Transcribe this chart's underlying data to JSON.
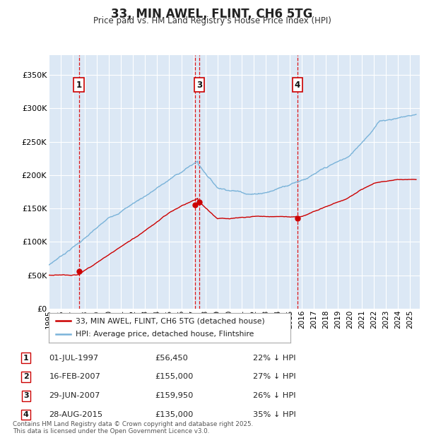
{
  "title": "33, MIN AWEL, FLINT, CH6 5TG",
  "subtitle": "Price paid vs. HM Land Registry's House Price Index (HPI)",
  "ylim": [
    0,
    380000
  ],
  "yticks": [
    0,
    50000,
    100000,
    150000,
    200000,
    250000,
    300000,
    350000
  ],
  "ytick_labels": [
    "£0",
    "£50K",
    "£100K",
    "£150K",
    "£200K",
    "£250K",
    "£300K",
    "£350K"
  ],
  "bg_color": "#dce8f5",
  "grid_color": "#ffffff",
  "hpi_color": "#7ab3d9",
  "price_color": "#cc0000",
  "vline_color": "#dd0000",
  "xlim_start": 1995.0,
  "xlim_end": 2025.8,
  "transactions": [
    {
      "num": 1,
      "date_x": 1997.5,
      "price": 56450
    },
    {
      "num": 2,
      "date_x": 2007.12,
      "price": 155000
    },
    {
      "num": 3,
      "date_x": 2007.49,
      "price": 159950
    },
    {
      "num": 4,
      "date_x": 2015.65,
      "price": 135000
    }
  ],
  "box_labels": [
    {
      "num": "1",
      "x": 1997.5
    },
    {
      "num": "3",
      "x": 2007.49
    },
    {
      "num": "4",
      "x": 2015.65
    }
  ],
  "transaction_table": [
    {
      "num": "1",
      "date": "01-JUL-1997",
      "price": "£56,450",
      "hpi": "22% ↓ HPI"
    },
    {
      "num": "2",
      "date": "16-FEB-2007",
      "price": "£155,000",
      "hpi": "27% ↓ HPI"
    },
    {
      "num": "3",
      "date": "29-JUN-2007",
      "price": "£159,950",
      "hpi": "26% ↓ HPI"
    },
    {
      "num": "4",
      "date": "28-AUG-2015",
      "price": "£135,000",
      "hpi": "35% ↓ HPI"
    }
  ],
  "legend_entries": [
    {
      "label": "33, MIN AWEL, FLINT, CH6 5TG (detached house)",
      "color": "#cc0000"
    },
    {
      "label": "HPI: Average price, detached house, Flintshire",
      "color": "#7ab3d9"
    }
  ],
  "footer": "Contains HM Land Registry data © Crown copyright and database right 2025.\nThis data is licensed under the Open Government Licence v3.0."
}
